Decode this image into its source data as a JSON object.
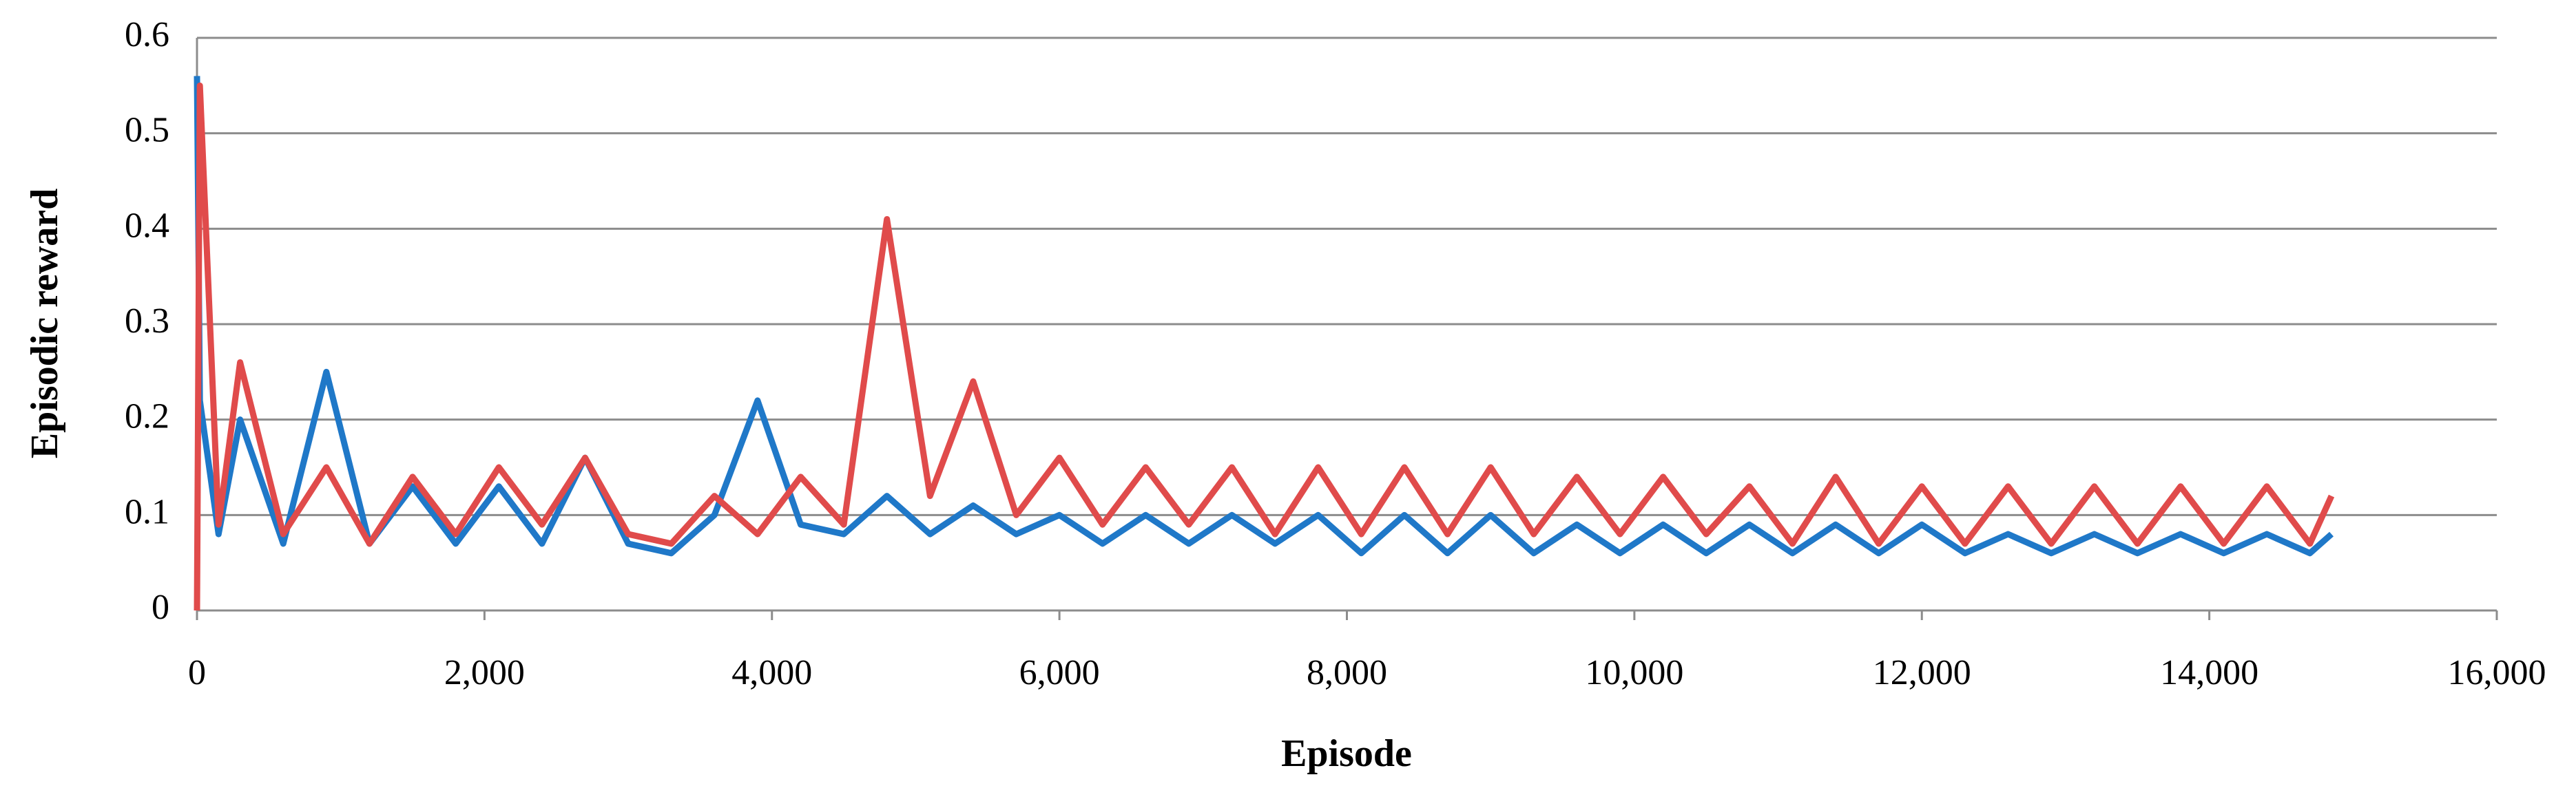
{
  "chart_data": {
    "type": "line",
    "x_label": "Episode",
    "y_label": "Episodic reward",
    "x": [
      0,
      20,
      150,
      300,
      600,
      900,
      1200,
      1500,
      1800,
      2100,
      2400,
      2700,
      3000,
      3300,
      3600,
      3900,
      4200,
      4500,
      4800,
      5100,
      5400,
      5700,
      6000,
      6300,
      6600,
      6900,
      7200,
      7500,
      7800,
      8100,
      8400,
      8700,
      9000,
      9300,
      9600,
      9900,
      10200,
      10500,
      10800,
      11100,
      11400,
      11700,
      12000,
      12300,
      12600,
      12900,
      13200,
      13500,
      13800,
      14100,
      14400,
      14700,
      14850
    ],
    "series": [
      {
        "color": "#1f78c8",
        "values": [
          0.56,
          0.22,
          0.08,
          0.2,
          0.07,
          0.25,
          0.07,
          0.13,
          0.07,
          0.13,
          0.07,
          0.16,
          0.07,
          0.06,
          0.1,
          0.22,
          0.09,
          0.08,
          0.12,
          0.08,
          0.11,
          0.08,
          0.1,
          0.07,
          0.1,
          0.07,
          0.1,
          0.07,
          0.1,
          0.06,
          0.1,
          0.06,
          0.1,
          0.06,
          0.09,
          0.06,
          0.09,
          0.06,
          0.09,
          0.06,
          0.09,
          0.06,
          0.09,
          0.06,
          0.08,
          0.06,
          0.08,
          0.06,
          0.08,
          0.06,
          0.08,
          0.06,
          0.08
        ]
      },
      {
        "color": "#e04b4b",
        "values": [
          0,
          0.55,
          0.09,
          0.26,
          0.08,
          0.15,
          0.07,
          0.14,
          0.08,
          0.15,
          0.09,
          0.16,
          0.08,
          0.07,
          0.12,
          0.08,
          0.14,
          0.09,
          0.41,
          0.12,
          0.24,
          0.1,
          0.16,
          0.09,
          0.15,
          0.09,
          0.15,
          0.08,
          0.15,
          0.08,
          0.15,
          0.08,
          0.15,
          0.08,
          0.14,
          0.08,
          0.14,
          0.08,
          0.13,
          0.07,
          0.14,
          0.07,
          0.13,
          0.07,
          0.13,
          0.07,
          0.13,
          0.07,
          0.13,
          0.07,
          0.13,
          0.07,
          0.12
        ]
      }
    ],
    "xlim": [
      0,
      16000
    ],
    "xticks": [
      0,
      {
        "value": 2000,
        "label": "2,000"
      },
      {
        "value": 4000,
        "label": "4,000"
      },
      {
        "value": 6000,
        "label": "6,000"
      },
      {
        "value": 8000,
        "label": "8,000"
      },
      {
        "value": 10000,
        "label": "10,000"
      },
      {
        "value": 12000,
        "label": "12,000"
      },
      {
        "value": 14000,
        "label": "14,000"
      },
      {
        "value": 16000,
        "label": "16,000"
      }
    ],
    "ylim": [
      0,
      0.6
    ],
    "yticks": [
      0,
      0.1,
      0.2,
      0.3,
      0.4,
      0.5,
      0.6
    ],
    "grid": true
  }
}
